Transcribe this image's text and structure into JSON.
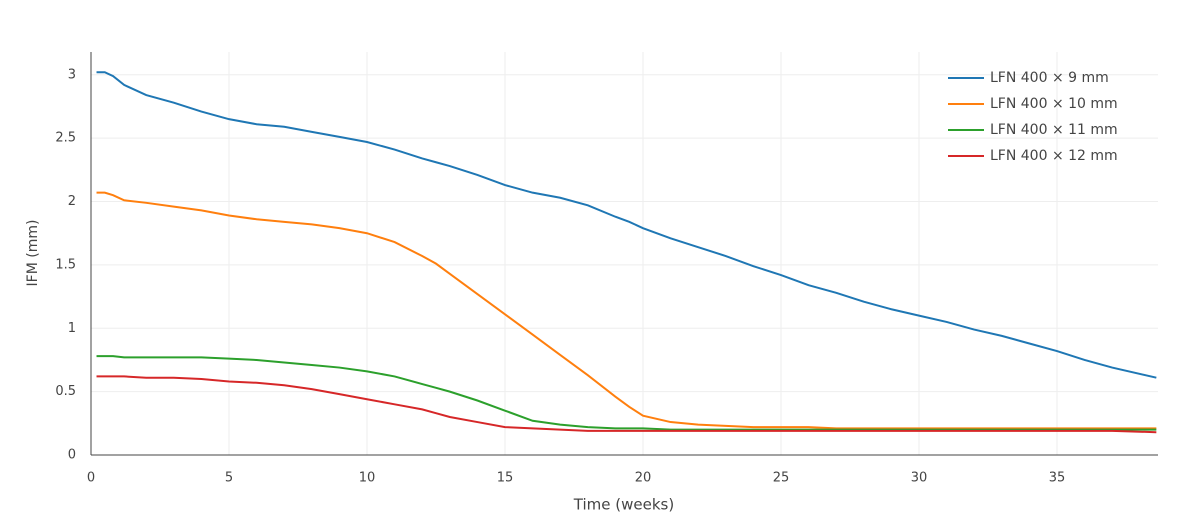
{
  "chart_data": {
    "type": "line",
    "x_label": "Time (weeks)",
    "y_label": "IFM (mm)",
    "x": [
      0.2,
      0.5,
      0.8,
      1.2,
      2,
      3,
      4,
      5,
      6,
      7,
      8,
      9,
      10,
      11,
      12,
      12.5,
      13,
      14,
      15,
      16,
      17,
      18,
      19,
      19.5,
      20,
      21,
      22,
      23,
      24,
      25,
      26,
      27,
      28,
      29,
      30,
      31,
      32,
      33,
      34,
      35,
      36,
      37,
      38.6
    ],
    "series": [
      {
        "name": "LFN 400 × 9 mm",
        "color": "#1f77b4",
        "values": [
          3.02,
          3.02,
          2.99,
          2.92,
          2.84,
          2.78,
          2.71,
          2.65,
          2.61,
          2.59,
          2.55,
          2.51,
          2.47,
          2.41,
          2.34,
          2.31,
          2.28,
          2.21,
          2.13,
          2.07,
          2.03,
          1.97,
          1.88,
          1.84,
          1.79,
          1.71,
          1.64,
          1.57,
          1.49,
          1.42,
          1.34,
          1.28,
          1.21,
          1.15,
          1.1,
          1.05,
          0.99,
          0.94,
          0.88,
          0.82,
          0.75,
          0.69,
          0.61
        ]
      },
      {
        "name": "LFN 400 × 10 mm",
        "color": "#ff7f0e",
        "values": [
          2.07,
          2.07,
          2.05,
          2.01,
          1.99,
          1.96,
          1.93,
          1.89,
          1.86,
          1.84,
          1.82,
          1.79,
          1.75,
          1.68,
          1.57,
          1.51,
          1.43,
          1.27,
          1.11,
          0.95,
          0.79,
          0.63,
          0.46,
          0.38,
          0.31,
          0.26,
          0.24,
          0.23,
          0.22,
          0.22,
          0.22,
          0.21,
          0.21,
          0.21,
          0.21,
          0.21,
          0.21,
          0.21,
          0.21,
          0.21,
          0.21,
          0.21,
          0.21
        ]
      },
      {
        "name": "LFN 400 × 11 mm",
        "color": "#2ca02c",
        "values": [
          0.78,
          0.78,
          0.78,
          0.77,
          0.77,
          0.77,
          0.77,
          0.76,
          0.75,
          0.73,
          0.71,
          0.69,
          0.66,
          0.62,
          0.56,
          0.53,
          0.5,
          0.43,
          0.35,
          0.27,
          0.24,
          0.22,
          0.21,
          0.21,
          0.21,
          0.2,
          0.2,
          0.2,
          0.2,
          0.2,
          0.2,
          0.2,
          0.2,
          0.2,
          0.2,
          0.2,
          0.2,
          0.2,
          0.2,
          0.2,
          0.2,
          0.2,
          0.2
        ]
      },
      {
        "name": "LFN 400 × 12 mm",
        "color": "#d62728",
        "values": [
          0.62,
          0.62,
          0.62,
          0.62,
          0.61,
          0.61,
          0.6,
          0.58,
          0.57,
          0.55,
          0.52,
          0.48,
          0.44,
          0.4,
          0.36,
          0.33,
          0.3,
          0.26,
          0.22,
          0.21,
          0.2,
          0.19,
          0.19,
          0.19,
          0.19,
          0.19,
          0.19,
          0.19,
          0.19,
          0.19,
          0.19,
          0.19,
          0.19,
          0.19,
          0.19,
          0.19,
          0.19,
          0.19,
          0.19,
          0.19,
          0.19,
          0.19,
          0.18
        ]
      }
    ],
    "xlim": [
      0,
      38.66
    ],
    "ylim": [
      0,
      3.18
    ],
    "xticks": [
      0,
      5,
      10,
      15,
      20,
      25,
      30,
      35
    ],
    "yticks": [
      0,
      0.5,
      1,
      1.5,
      2,
      2.5,
      3
    ],
    "grid": true,
    "legend": "top-right"
  }
}
